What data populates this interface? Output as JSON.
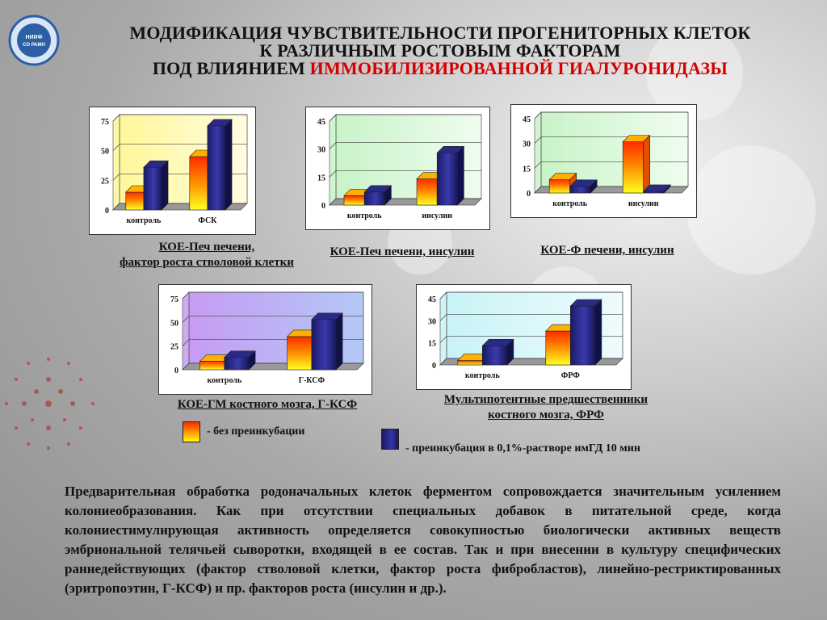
{
  "header": {
    "logo_text": "НИИФ СО РАМН",
    "title_line1": "МОДИФИКАЦИЯ ЧУВСТВИТЕЛЬНОСТИ ПРОГЕНИТОРНЫХ КЛЕТОК",
    "title_line2": "К РАЗЛИЧНЫМ РОСТОВЫМ ФАКТОРАМ",
    "title_line3_prefix": "ПОД ВЛИЯНИЕМ ",
    "title_line3_highlight": "ИММОБИЛИЗИРОВАННОЙ ГИАЛУРОНИДАЗЫ"
  },
  "colors": {
    "series1": "#ff6a00",
    "series2": "#2b2b8c",
    "highlight": "#d40000"
  },
  "captions": {
    "c1_line1": "КОЕ-Печ печени,",
    "c1_line2": "фактор роста стволовой клетки",
    "c2": "КОЕ-Печ печени, инсулин",
    "c3": "КОЕ-Ф печени, инсулин",
    "c4": "КОЕ-ГМ костного мозга, Г-КСФ",
    "c5_line1": "Мультипотентные предшественники",
    "c5_line2": "костного мозга, ФРФ"
  },
  "legend": {
    "item1": "- без преинкубации",
    "item2": "- преинкубация в 0,1%-растворе имГД 10 мин"
  },
  "paragraph": "Предварительная обработка родоначальных клеток ферментом сопровождается значительным усилением колониеобразования. Как при отсутствии специальных добавок в питательной среде, когда колониестимулирующая активность определяется совокупностью биологически активных веществ эмбриональной телячьей сыворотки, входящей в ее состав. Так и при внесении в культуру специфических раннедействующих (фактор стволовой клетки, фактор роста фибробластов), линейно-рестриктированных (эритропоэтин, Г-КСФ) и пр. факторов роста (инсулин и др.).",
  "chart_data": [
    {
      "type": "bar",
      "categories": [
        "контроль",
        "ФСК"
      ],
      "series": [
        {
          "name": "- без преинкубации",
          "values": [
            15,
            45
          ]
        },
        {
          "name": "- преинкубация в 0,1%-растворе имГД 10 мин",
          "values": [
            36,
            71
          ]
        }
      ],
      "yticks": [
        0,
        25,
        50,
        75
      ],
      "ylim": [
        0,
        75
      ],
      "background": "yellow"
    },
    {
      "type": "bar",
      "categories": [
        "контроль",
        "инсулин"
      ],
      "series": [
        {
          "name": "- без преинкубации",
          "values": [
            5,
            14
          ]
        },
        {
          "name": "- преинкубация в 0,1%-растворе имГД 10 мин",
          "values": [
            7,
            28
          ]
        }
      ],
      "yticks": [
        0,
        15,
        30,
        45
      ],
      "ylim": [
        0,
        45
      ],
      "background": "green"
    },
    {
      "type": "bar",
      "categories": [
        "контроль",
        "инсулин"
      ],
      "series": [
        {
          "name": "- без преинкубации",
          "values": [
            8,
            31
          ]
        },
        {
          "name": "- преинкубация в 0,1%-растворе имГД 10 мин",
          "values": [
            4,
            1
          ]
        }
      ],
      "yticks": [
        0,
        15,
        30,
        45
      ],
      "ylim": [
        0,
        45
      ],
      "background": "green"
    },
    {
      "type": "bar",
      "categories": [
        "контроль",
        "Г-КСФ"
      ],
      "series": [
        {
          "name": "- без преинкубации",
          "values": [
            9,
            35
          ]
        },
        {
          "name": "- преинкубация в 0,1%-растворе имГД 10 мин",
          "values": [
            13,
            53
          ]
        }
      ],
      "yticks": [
        0,
        25,
        50,
        75
      ],
      "ylim": [
        0,
        75
      ],
      "background": "purple"
    },
    {
      "type": "bar",
      "categories": [
        "контроль",
        "ФРФ"
      ],
      "series": [
        {
          "name": "- без преинкубации",
          "values": [
            3,
            23
          ]
        },
        {
          "name": "- преинкубация в 0,1%-растворе имГД 10 мин",
          "values": [
            13,
            40
          ]
        }
      ],
      "yticks": [
        0,
        15,
        30,
        45
      ],
      "ylim": [
        0,
        45
      ],
      "background": "lightblue"
    }
  ]
}
